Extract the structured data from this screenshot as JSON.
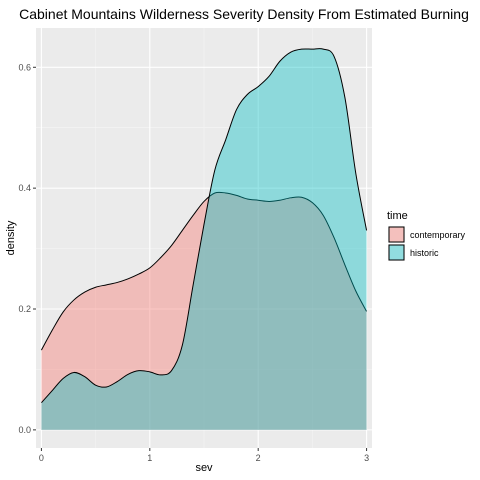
{
  "chart_data": {
    "type": "area",
    "title": "Cabinet Mountains Wilderness Severity Density From Estimated Burning",
    "xlabel": "sev",
    "ylabel": "density",
    "xlim": [
      -0.05,
      3.05
    ],
    "ylim": [
      -0.03,
      0.665
    ],
    "x_ticks": [
      0,
      1,
      2,
      3
    ],
    "x_tick_labels": [
      "0",
      "1",
      "2",
      "3"
    ],
    "y_ticks": [
      0.0,
      0.2,
      0.4,
      0.6
    ],
    "y_tick_labels": [
      "0.0",
      "0.2",
      "0.4",
      "0.6"
    ],
    "grid": true,
    "legend": {
      "title": "time",
      "position": "right"
    },
    "series": [
      {
        "name": "contemporary",
        "color": "#F8766D",
        "fill_opacity": 0.4,
        "x": [
          0,
          0.1,
          0.2,
          0.3,
          0.4,
          0.5,
          0.6,
          0.7,
          0.8,
          0.9,
          1.0,
          1.1,
          1.2,
          1.3,
          1.4,
          1.5,
          1.6,
          1.7,
          1.8,
          1.9,
          2.0,
          2.1,
          2.2,
          2.3,
          2.4,
          2.5,
          2.6,
          2.7,
          2.8,
          2.9,
          3.0
        ],
        "values": [
          0.132,
          0.165,
          0.195,
          0.215,
          0.228,
          0.236,
          0.24,
          0.244,
          0.25,
          0.258,
          0.268,
          0.285,
          0.305,
          0.33,
          0.355,
          0.378,
          0.392,
          0.392,
          0.388,
          0.382,
          0.38,
          0.378,
          0.38,
          0.384,
          0.385,
          0.376,
          0.355,
          0.318,
          0.273,
          0.23,
          0.196
        ]
      },
      {
        "name": "historic",
        "color": "#00BFC4",
        "fill_opacity": 0.4,
        "x": [
          0,
          0.1,
          0.2,
          0.3,
          0.4,
          0.5,
          0.6,
          0.7,
          0.8,
          0.9,
          1.0,
          1.1,
          1.2,
          1.3,
          1.4,
          1.5,
          1.6,
          1.7,
          1.8,
          1.9,
          2.0,
          2.1,
          2.2,
          2.3,
          2.4,
          2.5,
          2.6,
          2.7,
          2.8,
          2.9,
          3.0
        ],
        "values": [
          0.045,
          0.065,
          0.085,
          0.095,
          0.088,
          0.074,
          0.071,
          0.08,
          0.092,
          0.098,
          0.096,
          0.091,
          0.098,
          0.14,
          0.24,
          0.34,
          0.43,
          0.48,
          0.53,
          0.555,
          0.568,
          0.585,
          0.61,
          0.625,
          0.63,
          0.63,
          0.63,
          0.618,
          0.55,
          0.425,
          0.33
        ]
      }
    ]
  },
  "colors": {
    "panel_background": "#EBEBEB",
    "grid_major": "#FFFFFF",
    "grid_minor": "#F5F5F5",
    "outline": "#000000"
  }
}
